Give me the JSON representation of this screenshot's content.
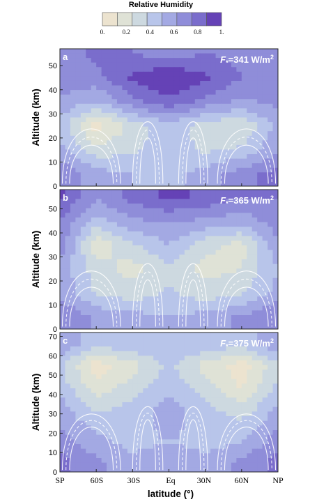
{
  "colors": {
    "scale": [
      "#ece3cf",
      "#dfe2d6",
      "#cdd9e0",
      "#b8c5ea",
      "#a3a9e3",
      "#8f8dd9",
      "#7a6dcc",
      "#6542b6"
    ],
    "overlay": "#ffffff",
    "frame": "#222222"
  },
  "colorbar": {
    "title": "Relative Humidity",
    "ticks": [
      "0.",
      "0.2",
      "0.4",
      "0.6",
      "0.8",
      "1."
    ]
  },
  "chart_data": [
    {
      "type": "heatmap",
      "panel": "a",
      "annotation": "F",
      "annotation_sub": "*",
      "annotation_value": "=341 W/m",
      "annotation_exp": "2",
      "variable": "Relative Humidity",
      "colorbar_range": [
        0,
        1
      ],
      "colorbar_ticks": [
        0,
        0.2,
        0.4,
        0.6,
        0.8,
        1
      ],
      "ylabel": "Altitude (km)",
      "ylim": [
        0,
        57
      ],
      "yticks": [
        0,
        10,
        20,
        30,
        40,
        50
      ],
      "xlim": [
        -90,
        90
      ],
      "x_categories": [
        "SP",
        "60S",
        "30S",
        "Eq",
        "30N",
        "60N",
        "NP"
      ],
      "field": {
        "lat": [
          -90,
          -60,
          -30,
          0,
          30,
          60,
          90
        ],
        "alt": [
          5,
          15,
          25,
          35,
          45,
          55
        ],
        "rh": [
          [
            0.75,
            0.55,
            0.5,
            0.45,
            0.55,
            0.7,
            0.8
          ],
          [
            0.55,
            0.3,
            0.35,
            0.45,
            0.35,
            0.4,
            0.6
          ],
          [
            0.45,
            0.05,
            0.3,
            0.45,
            0.3,
            0.25,
            0.55
          ],
          [
            0.6,
            0.5,
            0.7,
            0.85,
            0.7,
            0.6,
            0.65
          ],
          [
            0.7,
            0.7,
            0.9,
            1.0,
            0.9,
            0.75,
            0.7
          ],
          [
            0.65,
            0.8,
            0.75,
            0.7,
            0.75,
            0.7,
            0.65
          ]
        ]
      },
      "overlay_contours": "white solid and dashed lines"
    },
    {
      "type": "heatmap",
      "panel": "b",
      "annotation": "F",
      "annotation_sub": "*",
      "annotation_value": "=365 W/m",
      "annotation_exp": "2",
      "variable": "Relative Humidity",
      "ylabel": "Altitude (km)",
      "ylim": [
        0,
        58
      ],
      "yticks": [
        0,
        10,
        20,
        30,
        40,
        50
      ],
      "xlim": [
        -90,
        90
      ],
      "x_categories": [
        "SP",
        "60S",
        "30S",
        "Eq",
        "30N",
        "60N",
        "NP"
      ],
      "field": {
        "lat": [
          -90,
          -60,
          -30,
          0,
          30,
          60,
          90
        ],
        "alt": [
          5,
          15,
          25,
          35,
          45,
          55
        ],
        "rh": [
          [
            0.75,
            0.6,
            0.55,
            0.5,
            0.55,
            0.65,
            0.75
          ],
          [
            0.6,
            0.35,
            0.3,
            0.4,
            0.3,
            0.35,
            0.55
          ],
          [
            0.6,
            0.3,
            0.2,
            0.35,
            0.2,
            0.25,
            0.5
          ],
          [
            0.7,
            0.15,
            0.35,
            0.5,
            0.3,
            0.2,
            0.6
          ],
          [
            0.75,
            0.45,
            0.6,
            0.65,
            0.6,
            0.55,
            0.7
          ],
          [
            0.9,
            0.65,
            0.8,
            0.9,
            0.85,
            0.75,
            0.75
          ]
        ]
      },
      "overlay_contours": "white solid and dashed lines"
    },
    {
      "type": "heatmap",
      "panel": "c",
      "annotation": "F",
      "annotation_sub": "*",
      "annotation_value": "=375 W/m",
      "annotation_exp": "2",
      "variable": "Relative Humidity",
      "ylabel": "Altitude (km)",
      "ylim": [
        0,
        72
      ],
      "yticks": [
        0,
        10,
        20,
        30,
        40,
        50,
        60,
        70
      ],
      "xlabel": "latitude (°)",
      "xlim": [
        -90,
        90
      ],
      "xticks": [
        -90,
        -60,
        -30,
        0,
        30,
        60,
        90
      ],
      "x_categories": [
        "SP",
        "60S",
        "30S",
        "Eq",
        "30N",
        "60N",
        "NP"
      ],
      "field": {
        "lat": [
          -90,
          -60,
          -30,
          0,
          30,
          60,
          90
        ],
        "alt": [
          5,
          15,
          25,
          35,
          45,
          55,
          65
        ],
        "rh": [
          [
            0.8,
            0.65,
            0.55,
            0.6,
            0.55,
            0.65,
            0.8
          ],
          [
            0.7,
            0.55,
            0.45,
            0.5,
            0.45,
            0.5,
            0.7
          ],
          [
            0.6,
            0.45,
            0.45,
            0.55,
            0.45,
            0.4,
            0.6
          ],
          [
            0.55,
            0.3,
            0.4,
            0.55,
            0.4,
            0.25,
            0.5
          ],
          [
            0.45,
            0.15,
            0.3,
            0.45,
            0.3,
            0.1,
            0.4
          ],
          [
            0.4,
            0.05,
            0.2,
            0.4,
            0.2,
            0.05,
            0.35
          ],
          [
            0.6,
            0.4,
            0.45,
            0.5,
            0.45,
            0.4,
            0.6
          ]
        ]
      },
      "overlay_contours": "white solid and dashed lines"
    }
  ]
}
